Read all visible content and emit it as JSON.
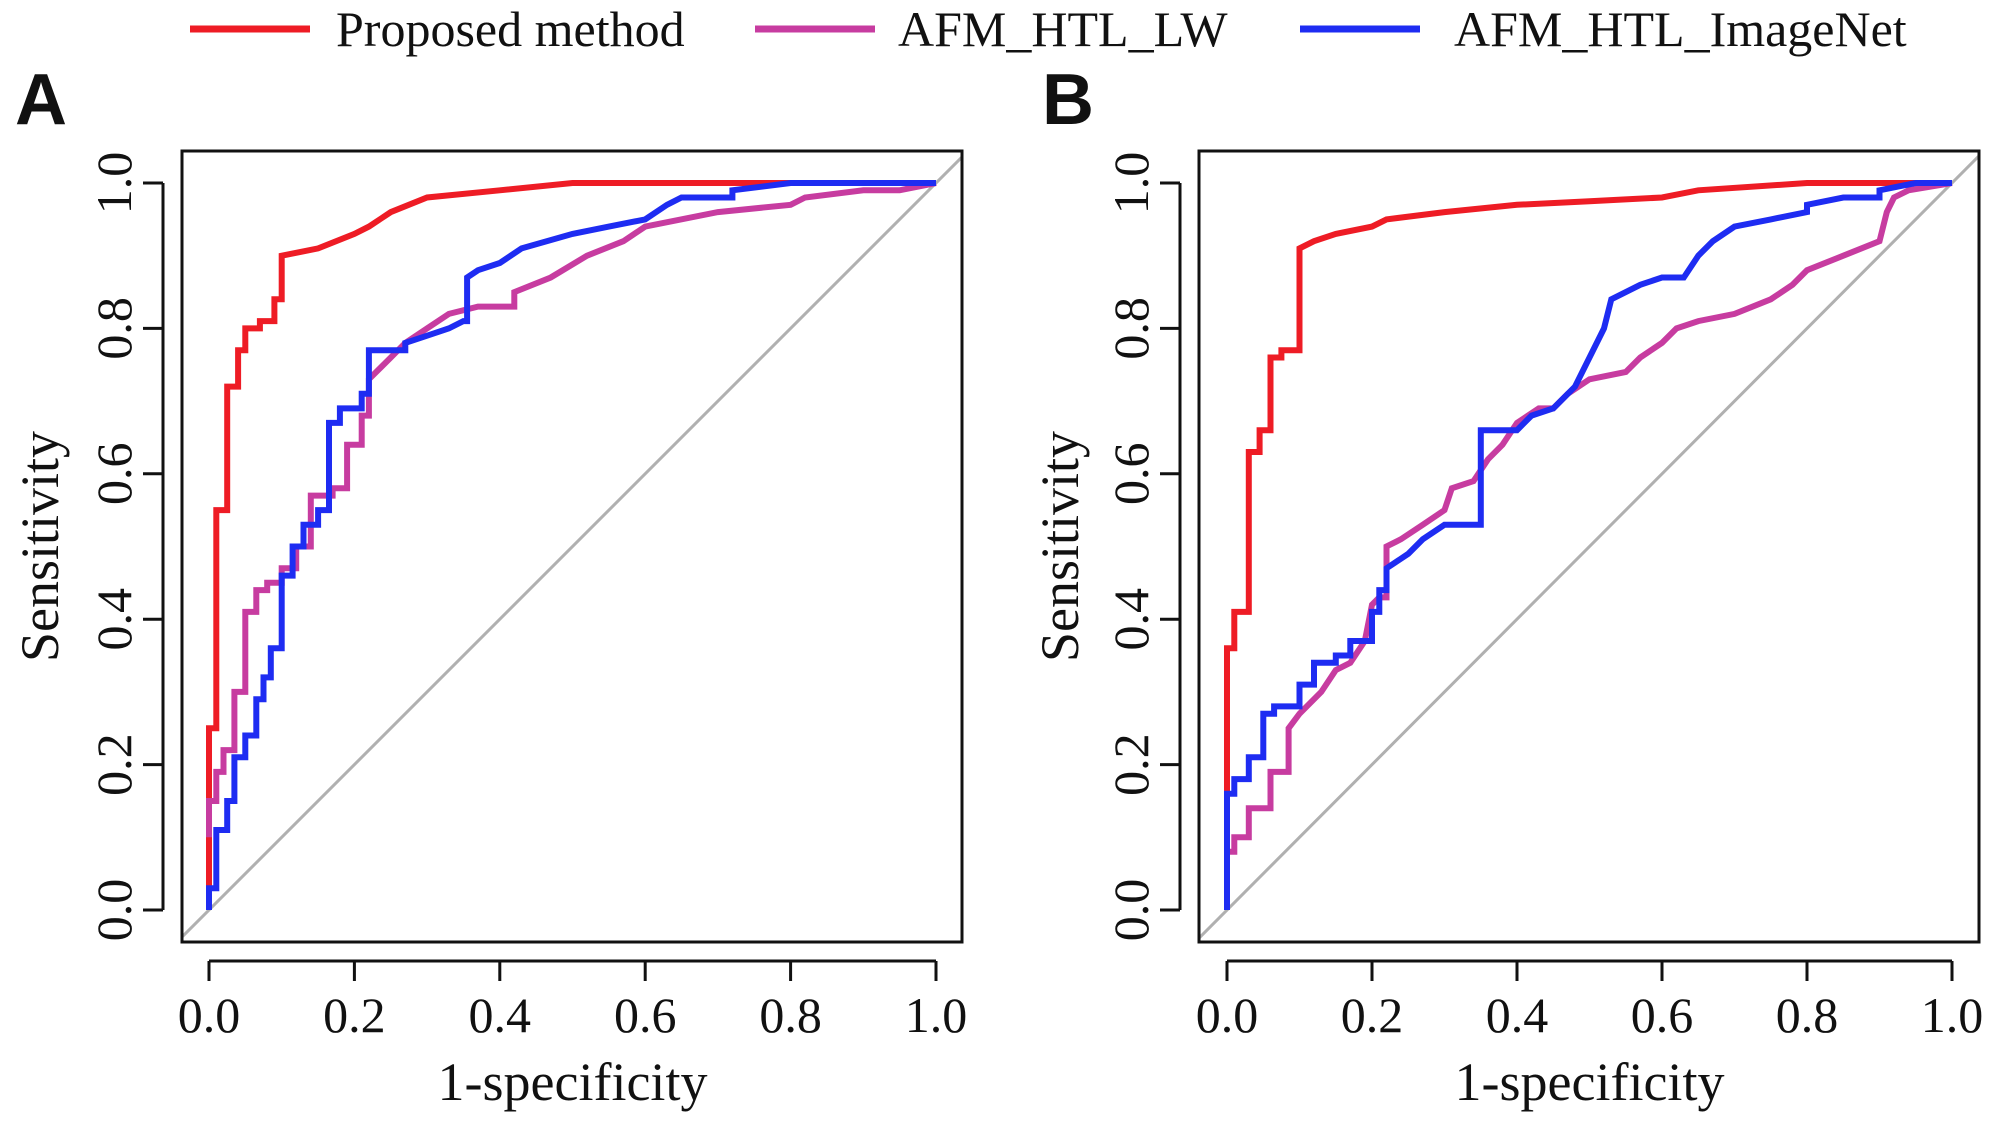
{
  "legend": {
    "items": [
      {
        "label": "Proposed method",
        "color": "#ee1c25"
      },
      {
        "label": "AFM_HTL_LW",
        "color": "#c73ca0"
      },
      {
        "label": "AFM_HTL_ImageNet",
        "color": "#1e2cf2"
      }
    ]
  },
  "panels": [
    {
      "letter": "A"
    },
    {
      "letter": "B"
    }
  ],
  "chart_data": [
    {
      "type": "line",
      "panel": "A",
      "title": "",
      "xlabel": "1-specificity",
      "ylabel": "Sensitivity",
      "xlim": [
        0,
        1
      ],
      "ylim": [
        0,
        1
      ],
      "xticks": [
        "0.0",
        "0.2",
        "0.4",
        "0.6",
        "0.8",
        "1.0"
      ],
      "yticks": [
        "0.0",
        "0.2",
        "0.4",
        "0.6",
        "0.8",
        "1.0"
      ],
      "reference_line": {
        "from": [
          0,
          0
        ],
        "to": [
          1,
          1
        ],
        "color": "#b0b0b0"
      },
      "series": [
        {
          "name": "Proposed method",
          "color": "#ee1c25",
          "points": [
            [
              0,
              0
            ],
            [
              0,
              0.25
            ],
            [
              0.01,
              0.25
            ],
            [
              0.01,
              0.55
            ],
            [
              0.025,
              0.55
            ],
            [
              0.025,
              0.72
            ],
            [
              0.04,
              0.72
            ],
            [
              0.04,
              0.77
            ],
            [
              0.05,
              0.77
            ],
            [
              0.05,
              0.8
            ],
            [
              0.07,
              0.8
            ],
            [
              0.07,
              0.81
            ],
            [
              0.09,
              0.81
            ],
            [
              0.09,
              0.84
            ],
            [
              0.1,
              0.84
            ],
            [
              0.1,
              0.9
            ],
            [
              0.15,
              0.91
            ],
            [
              0.2,
              0.93
            ],
            [
              0.22,
              0.94
            ],
            [
              0.25,
              0.96
            ],
            [
              0.3,
              0.98
            ],
            [
              0.4,
              0.99
            ],
            [
              0.5,
              1.0
            ],
            [
              1.0,
              1.0
            ]
          ]
        },
        {
          "name": "AFM_HTL_LW",
          "color": "#c73ca0",
          "points": [
            [
              0,
              0.1
            ],
            [
              0,
              0.15
            ],
            [
              0.01,
              0.15
            ],
            [
              0.01,
              0.19
            ],
            [
              0.02,
              0.19
            ],
            [
              0.02,
              0.22
            ],
            [
              0.035,
              0.22
            ],
            [
              0.035,
              0.3
            ],
            [
              0.05,
              0.3
            ],
            [
              0.05,
              0.41
            ],
            [
              0.065,
              0.41
            ],
            [
              0.065,
              0.44
            ],
            [
              0.08,
              0.44
            ],
            [
              0.08,
              0.45
            ],
            [
              0.1,
              0.45
            ],
            [
              0.1,
              0.47
            ],
            [
              0.12,
              0.47
            ],
            [
              0.12,
              0.5
            ],
            [
              0.14,
              0.5
            ],
            [
              0.14,
              0.57
            ],
            [
              0.17,
              0.57
            ],
            [
              0.17,
              0.58
            ],
            [
              0.19,
              0.58
            ],
            [
              0.19,
              0.64
            ],
            [
              0.21,
              0.64
            ],
            [
              0.21,
              0.68
            ],
            [
              0.22,
              0.68
            ],
            [
              0.22,
              0.73
            ],
            [
              0.25,
              0.76
            ],
            [
              0.27,
              0.78
            ],
            [
              0.3,
              0.8
            ],
            [
              0.33,
              0.82
            ],
            [
              0.37,
              0.83
            ],
            [
              0.42,
              0.83
            ],
            [
              0.42,
              0.85
            ],
            [
              0.47,
              0.87
            ],
            [
              0.52,
              0.9
            ],
            [
              0.57,
              0.92
            ],
            [
              0.6,
              0.94
            ],
            [
              0.7,
              0.96
            ],
            [
              0.8,
              0.97
            ],
            [
              0.82,
              0.98
            ],
            [
              0.9,
              0.99
            ],
            [
              0.95,
              0.99
            ],
            [
              1.0,
              1.0
            ]
          ]
        },
        {
          "name": "AFM_HTL_ImageNet",
          "color": "#1e2cf2",
          "points": [
            [
              0,
              0
            ],
            [
              0,
              0.03
            ],
            [
              0.01,
              0.03
            ],
            [
              0.01,
              0.11
            ],
            [
              0.025,
              0.11
            ],
            [
              0.025,
              0.15
            ],
            [
              0.035,
              0.15
            ],
            [
              0.035,
              0.21
            ],
            [
              0.05,
              0.21
            ],
            [
              0.05,
              0.24
            ],
            [
              0.065,
              0.24
            ],
            [
              0.065,
              0.29
            ],
            [
              0.075,
              0.29
            ],
            [
              0.075,
              0.32
            ],
            [
              0.085,
              0.32
            ],
            [
              0.085,
              0.36
            ],
            [
              0.1,
              0.36
            ],
            [
              0.1,
              0.46
            ],
            [
              0.115,
              0.46
            ],
            [
              0.115,
              0.5
            ],
            [
              0.13,
              0.5
            ],
            [
              0.13,
              0.53
            ],
            [
              0.15,
              0.53
            ],
            [
              0.15,
              0.55
            ],
            [
              0.165,
              0.55
            ],
            [
              0.165,
              0.67
            ],
            [
              0.18,
              0.67
            ],
            [
              0.18,
              0.69
            ],
            [
              0.21,
              0.69
            ],
            [
              0.21,
              0.71
            ],
            [
              0.22,
              0.71
            ],
            [
              0.22,
              0.77
            ],
            [
              0.27,
              0.77
            ],
            [
              0.27,
              0.78
            ],
            [
              0.3,
              0.79
            ],
            [
              0.33,
              0.8
            ],
            [
              0.35,
              0.81
            ],
            [
              0.355,
              0.81
            ],
            [
              0.355,
              0.87
            ],
            [
              0.37,
              0.88
            ],
            [
              0.4,
              0.89
            ],
            [
              0.43,
              0.91
            ],
            [
              0.5,
              0.93
            ],
            [
              0.55,
              0.94
            ],
            [
              0.6,
              0.95
            ],
            [
              0.63,
              0.97
            ],
            [
              0.65,
              0.98
            ],
            [
              0.72,
              0.98
            ],
            [
              0.72,
              0.99
            ],
            [
              0.8,
              1.0
            ],
            [
              1.0,
              1.0
            ]
          ]
        }
      ]
    },
    {
      "type": "line",
      "panel": "B",
      "title": "",
      "xlabel": "1-specificity",
      "ylabel": "Sensitivity",
      "xlim": [
        0,
        1
      ],
      "ylim": [
        0,
        1
      ],
      "xticks": [
        "0.0",
        "0.2",
        "0.4",
        "0.6",
        "0.8",
        "1.0"
      ],
      "yticks": [
        "0.0",
        "0.2",
        "0.4",
        "0.6",
        "0.8",
        "1.0"
      ],
      "reference_line": {
        "from": [
          0,
          0
        ],
        "to": [
          1,
          1
        ],
        "color": "#b0b0b0"
      },
      "series": [
        {
          "name": "Proposed method",
          "color": "#ee1c25",
          "points": [
            [
              0,
              0.16
            ],
            [
              0,
              0.36
            ],
            [
              0.01,
              0.36
            ],
            [
              0.01,
              0.41
            ],
            [
              0.03,
              0.41
            ],
            [
              0.03,
              0.63
            ],
            [
              0.045,
              0.63
            ],
            [
              0.045,
              0.66
            ],
            [
              0.06,
              0.66
            ],
            [
              0.06,
              0.76
            ],
            [
              0.075,
              0.76
            ],
            [
              0.075,
              0.77
            ],
            [
              0.1,
              0.77
            ],
            [
              0.1,
              0.91
            ],
            [
              0.12,
              0.92
            ],
            [
              0.15,
              0.93
            ],
            [
              0.2,
              0.94
            ],
            [
              0.22,
              0.95
            ],
            [
              0.3,
              0.96
            ],
            [
              0.4,
              0.97
            ],
            [
              0.5,
              0.975
            ],
            [
              0.6,
              0.98
            ],
            [
              0.65,
              0.99
            ],
            [
              0.8,
              1.0
            ],
            [
              1.0,
              1.0
            ]
          ]
        },
        {
          "name": "AFM_HTL_LW",
          "color": "#c73ca0",
          "points": [
            [
              0,
              0.08
            ],
            [
              0.01,
              0.08
            ],
            [
              0.01,
              0.1
            ],
            [
              0.03,
              0.1
            ],
            [
              0.03,
              0.14
            ],
            [
              0.06,
              0.14
            ],
            [
              0.06,
              0.19
            ],
            [
              0.085,
              0.19
            ],
            [
              0.085,
              0.25
            ],
            [
              0.1,
              0.27
            ],
            [
              0.13,
              0.3
            ],
            [
              0.15,
              0.33
            ],
            [
              0.17,
              0.34
            ],
            [
              0.19,
              0.37
            ],
            [
              0.2,
              0.42
            ],
            [
              0.21,
              0.43
            ],
            [
              0.22,
              0.43
            ],
            [
              0.22,
              0.5
            ],
            [
              0.24,
              0.51
            ],
            [
              0.27,
              0.53
            ],
            [
              0.3,
              0.55
            ],
            [
              0.31,
              0.58
            ],
            [
              0.34,
              0.59
            ],
            [
              0.36,
              0.62
            ],
            [
              0.38,
              0.64
            ],
            [
              0.4,
              0.67
            ],
            [
              0.43,
              0.69
            ],
            [
              0.45,
              0.69
            ],
            [
              0.47,
              0.71
            ],
            [
              0.5,
              0.73
            ],
            [
              0.55,
              0.74
            ],
            [
              0.57,
              0.76
            ],
            [
              0.6,
              0.78
            ],
            [
              0.62,
              0.8
            ],
            [
              0.65,
              0.81
            ],
            [
              0.7,
              0.82
            ],
            [
              0.75,
              0.84
            ],
            [
              0.78,
              0.86
            ],
            [
              0.8,
              0.88
            ],
            [
              0.85,
              0.9
            ],
            [
              0.9,
              0.92
            ],
            [
              0.91,
              0.96
            ],
            [
              0.92,
              0.98
            ],
            [
              0.94,
              0.99
            ],
            [
              1.0,
              1.0
            ]
          ]
        },
        {
          "name": "AFM_HTL_ImageNet",
          "color": "#1e2cf2",
          "points": [
            [
              0,
              0
            ],
            [
              0,
              0.16
            ],
            [
              0.01,
              0.16
            ],
            [
              0.01,
              0.18
            ],
            [
              0.03,
              0.18
            ],
            [
              0.03,
              0.21
            ],
            [
              0.05,
              0.21
            ],
            [
              0.05,
              0.27
            ],
            [
              0.065,
              0.27
            ],
            [
              0.065,
              0.28
            ],
            [
              0.1,
              0.28
            ],
            [
              0.1,
              0.31
            ],
            [
              0.12,
              0.31
            ],
            [
              0.12,
              0.34
            ],
            [
              0.15,
              0.34
            ],
            [
              0.15,
              0.35
            ],
            [
              0.17,
              0.35
            ],
            [
              0.17,
              0.37
            ],
            [
              0.2,
              0.37
            ],
            [
              0.2,
              0.41
            ],
            [
              0.21,
              0.41
            ],
            [
              0.21,
              0.44
            ],
            [
              0.22,
              0.44
            ],
            [
              0.22,
              0.47
            ],
            [
              0.25,
              0.49
            ],
            [
              0.27,
              0.51
            ],
            [
              0.3,
              0.53
            ],
            [
              0.35,
              0.53
            ],
            [
              0.35,
              0.66
            ],
            [
              0.4,
              0.66
            ],
            [
              0.42,
              0.68
            ],
            [
              0.45,
              0.69
            ],
            [
              0.48,
              0.72
            ],
            [
              0.5,
              0.76
            ],
            [
              0.52,
              0.8
            ],
            [
              0.53,
              0.84
            ],
            [
              0.55,
              0.85
            ],
            [
              0.57,
              0.86
            ],
            [
              0.6,
              0.87
            ],
            [
              0.63,
              0.87
            ],
            [
              0.65,
              0.9
            ],
            [
              0.67,
              0.92
            ],
            [
              0.7,
              0.94
            ],
            [
              0.75,
              0.95
            ],
            [
              0.8,
              0.96
            ],
            [
              0.8,
              0.97
            ],
            [
              0.85,
              0.98
            ],
            [
              0.9,
              0.98
            ],
            [
              0.9,
              0.99
            ],
            [
              0.95,
              1.0
            ],
            [
              1.0,
              1.0
            ]
          ]
        }
      ]
    }
  ]
}
